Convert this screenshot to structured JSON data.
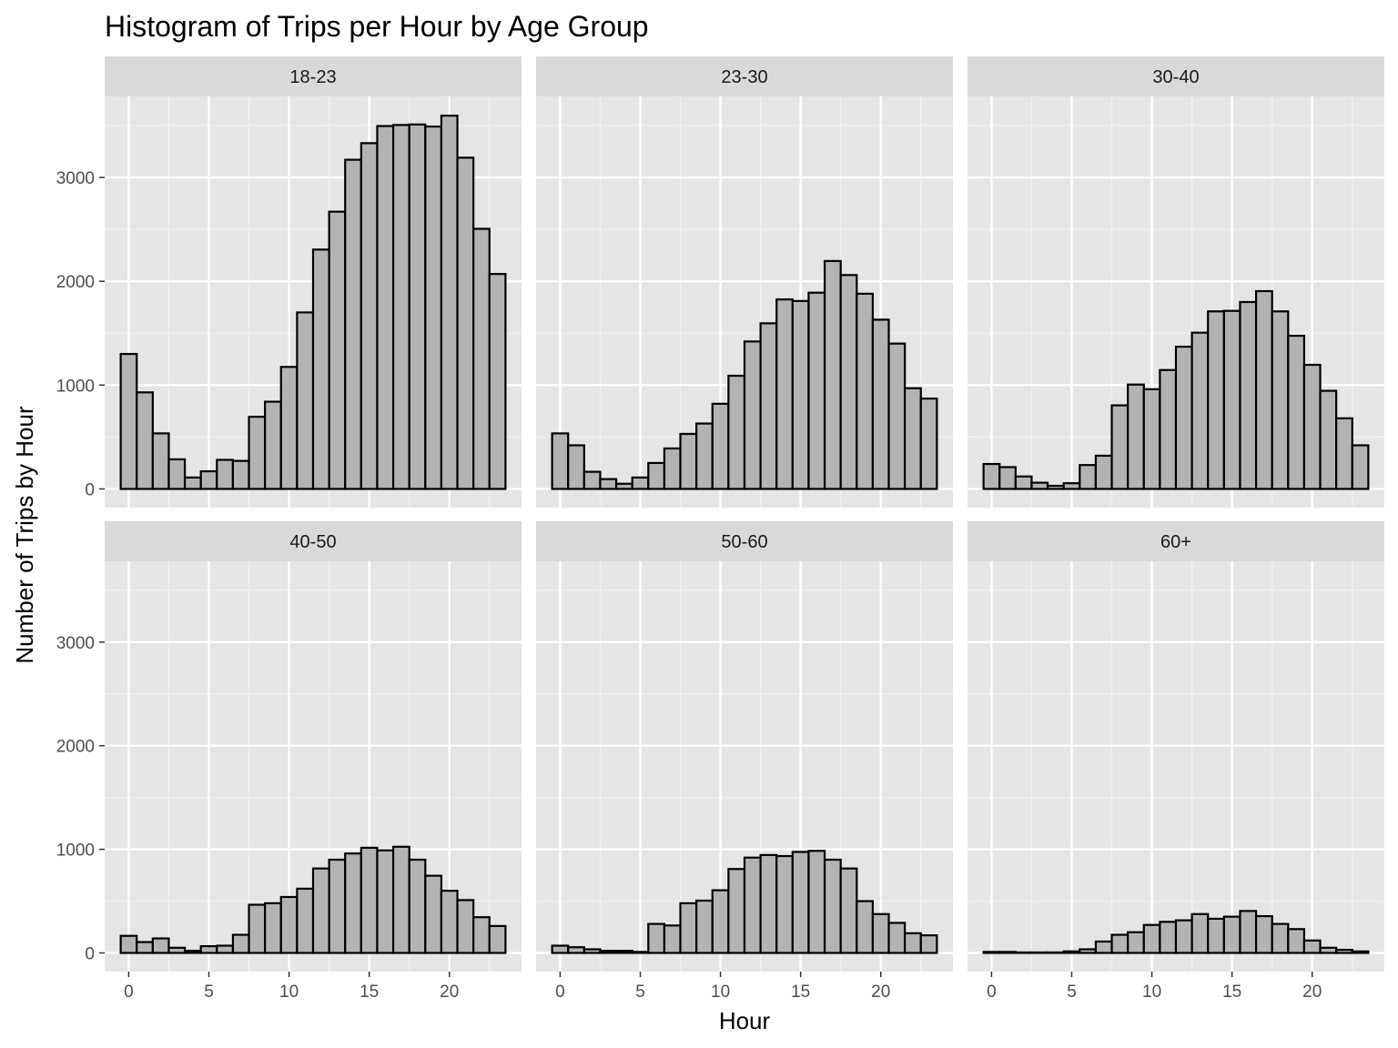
{
  "chart_data": {
    "type": "bar",
    "title": "Histogram of Trips per Hour by Age Group",
    "xlabel": "Hour",
    "ylabel": "Number of Trips by Hour",
    "x": [
      0,
      1,
      2,
      3,
      4,
      5,
      6,
      7,
      8,
      9,
      10,
      11,
      12,
      13,
      14,
      15,
      16,
      17,
      18,
      19,
      20,
      21,
      22,
      23
    ],
    "xticks": [
      0,
      5,
      10,
      15,
      20
    ],
    "yticks": [
      0,
      1000,
      2000,
      3000
    ],
    "xlim": [
      -1.5,
      24.5
    ],
    "ylim": [
      -180,
      3780
    ],
    "grid": true,
    "layout": "facets 3 columns x 2 rows, shared axes",
    "colors": {
      "bar_fill": "#b3b3b3",
      "bar_outline": "#000000",
      "panel_bg": "#e5e5e5",
      "strip_bg": "#d9d9d9",
      "grid": "#ffffff"
    },
    "series": [
      {
        "name": "18-23",
        "values": [
          1300,
          930,
          535,
          285,
          110,
          170,
          280,
          270,
          695,
          840,
          1175,
          1700,
          2305,
          2670,
          3170,
          3330,
          3495,
          3505,
          3510,
          3490,
          3595,
          3190,
          2505,
          2070
        ]
      },
      {
        "name": "23-30",
        "values": [
          535,
          420,
          165,
          95,
          50,
          110,
          250,
          390,
          530,
          630,
          820,
          1090,
          1420,
          1595,
          1825,
          1810,
          1890,
          2195,
          2060,
          1880,
          1630,
          1400,
          970,
          870
        ]
      },
      {
        "name": "30-40",
        "values": [
          240,
          210,
          120,
          60,
          30,
          55,
          230,
          320,
          805,
          1005,
          960,
          1145,
          1370,
          1505,
          1710,
          1715,
          1800,
          1905,
          1710,
          1475,
          1195,
          945,
          680,
          420
        ]
      },
      {
        "name": "40-50",
        "values": [
          165,
          105,
          140,
          50,
          20,
          65,
          70,
          175,
          465,
          480,
          540,
          620,
          815,
          900,
          960,
          1015,
          990,
          1025,
          900,
          745,
          600,
          510,
          345,
          260
        ]
      },
      {
        "name": "50-60",
        "values": [
          70,
          55,
          35,
          20,
          20,
          10,
          280,
          265,
          480,
          505,
          605,
          810,
          920,
          945,
          935,
          975,
          985,
          900,
          815,
          500,
          375,
          290,
          190,
          170
        ]
      },
      {
        "name": "60+",
        "values": [
          10,
          10,
          5,
          5,
          5,
          15,
          35,
          110,
          175,
          200,
          270,
          300,
          315,
          375,
          330,
          350,
          405,
          355,
          280,
          230,
          120,
          50,
          30,
          15
        ]
      }
    ]
  }
}
